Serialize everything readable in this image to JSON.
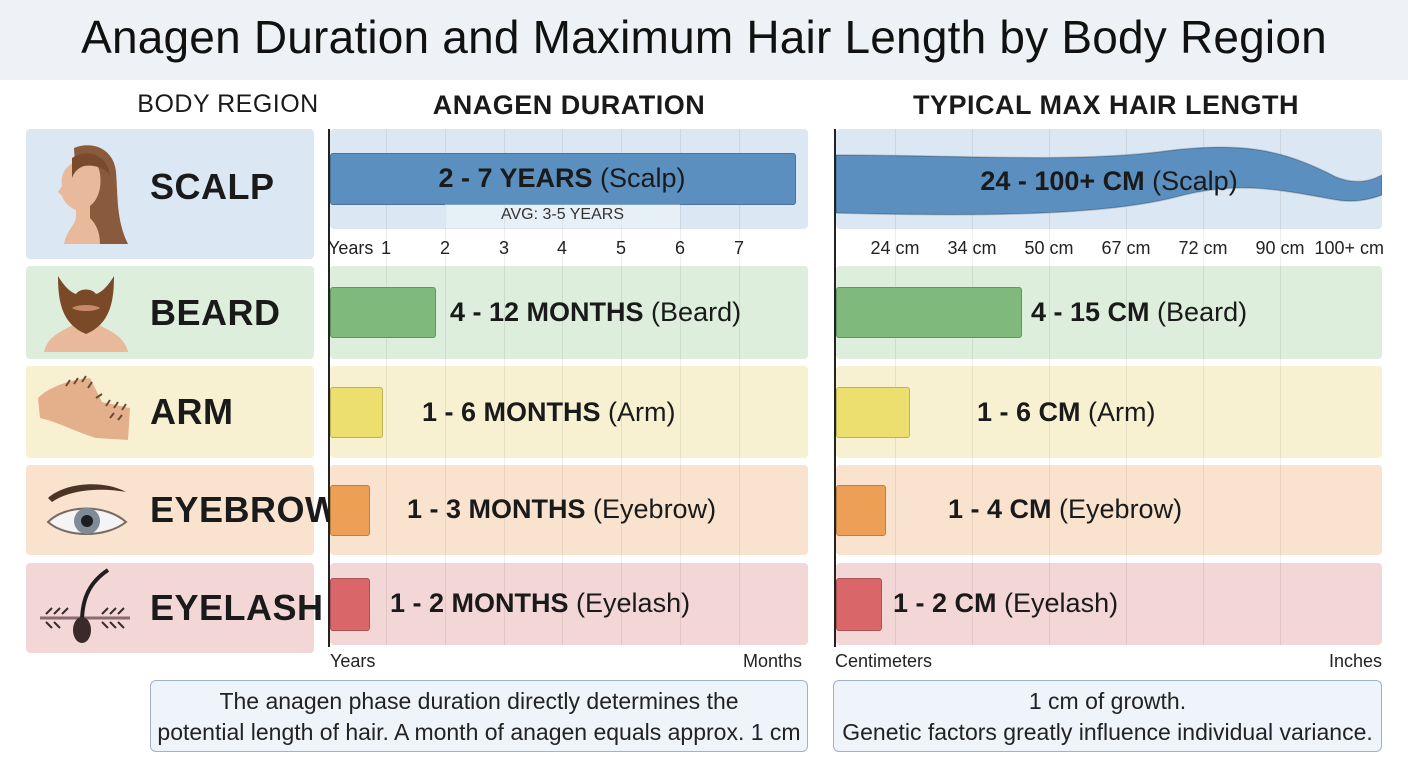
{
  "chart_data": {
    "type": "bar",
    "title": "Anagen Duration and Maximum Hair Length by Body Region",
    "categories": [
      "SCALP",
      "BEARD",
      "ARM",
      "EYEBROW",
      "EYELASH"
    ],
    "column_headers": {
      "region": "BODY REGION",
      "duration": "ANAGEN DURATION",
      "length": "TYPICAL MAX HAIR LENGTH"
    },
    "series": [
      {
        "name": "ANAGEN DURATION",
        "unit": "months",
        "values": [
          84,
          12,
          6,
          3,
          2
        ],
        "labels": [
          {
            "bold": "2 - 7 YEARS",
            "rest": " (Scalp)"
          },
          {
            "bold": "4 - 12 MONTHS",
            "rest": " (Beard)"
          },
          {
            "bold": "1 - 6 MONTHS",
            "rest": " (Arm)"
          },
          {
            "bold": "1 - 3 MONTHS",
            "rest": " (Eyebrow)"
          },
          {
            "bold": "1 - 2 MONTHS",
            "rest": " (Eyelash)"
          }
        ]
      },
      {
        "name": "TYPICAL MAX HAIR LENGTH",
        "unit": "cm",
        "values": [
          100,
          15,
          6,
          4,
          2
        ],
        "labels": [
          {
            "bold": "24 - 100+ CM",
            "rest": " (Scalp)"
          },
          {
            "bold": "4 - 15 CM",
            "rest": " (Beard)"
          },
          {
            "bold": "1 - 6 CM",
            "rest": " (Arm)"
          },
          {
            "bold": "1 - 4 CM",
            "rest": " (Eyebrow)"
          },
          {
            "bold": "1 - 2 CM",
            "rest": " (Eyelash)"
          }
        ]
      }
    ],
    "scalp_avg_label": "AVG: 3-5 YEARS",
    "duration_axis": {
      "unit_label": "Years",
      "ticks": [
        "1",
        "2",
        "3",
        "4",
        "5",
        "6",
        "7"
      ]
    },
    "length_axis": {
      "ticks": [
        "24 cm",
        "34 cm",
        "50 cm",
        "67 cm",
        "72 cm",
        "90 cm",
        "100+ cm"
      ]
    },
    "axis_footers": {
      "left_start": "Years",
      "left_end": "Months",
      "right_start": "Centimeters",
      "right_end": "Inches"
    },
    "notes": {
      "left": [
        "The anagen phase duration directly determines the",
        "potential length of hair. A month of anagen equals approx. 1 cm"
      ],
      "right": [
        "1 cm of growth.",
        "Genetic factors greatly influence individual variance."
      ]
    },
    "colors": {
      "scalp": "#5b8fbf",
      "scalp_bg": "#dbe7f3",
      "beard": "#7fb97c",
      "beard_bg": "#ddeedd",
      "arm": "#ecdf6e",
      "arm_bg": "#f7f1d2",
      "eyebrow": "#ec9f55",
      "eyebrow_bg": "#f9e3cf",
      "eyelash": "#d9676a",
      "eyelash_bg": "#f3d6d6"
    },
    "icons": [
      "woman-profile-icon",
      "beard-icon",
      "arm-icon",
      "eye-icon",
      "hair-follicle-icon"
    ],
    "grid": true
  }
}
